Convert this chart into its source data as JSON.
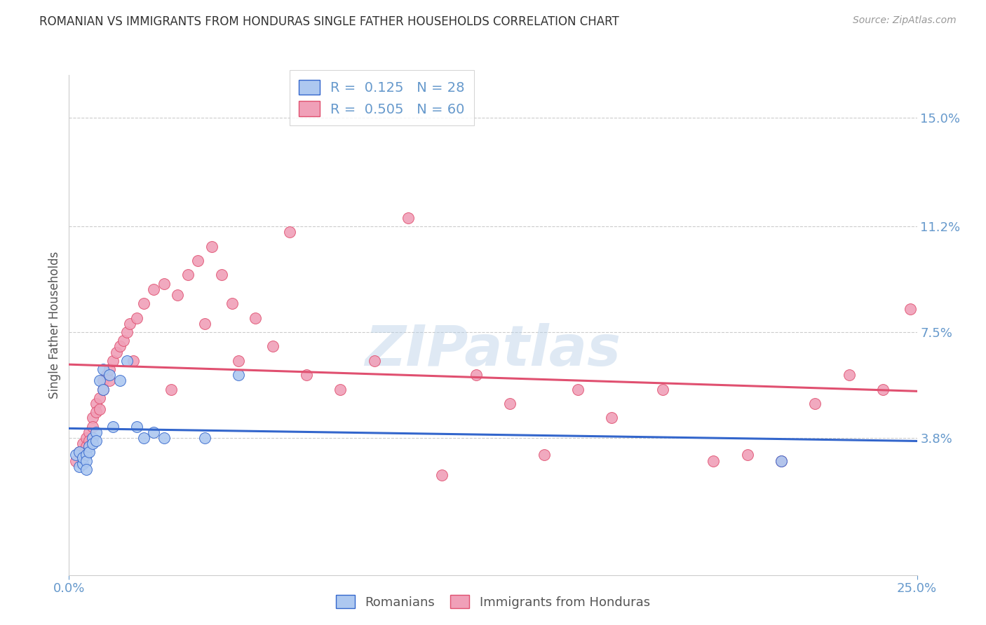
{
  "title": "ROMANIAN VS IMMIGRANTS FROM HONDURAS SINGLE FATHER HOUSEHOLDS CORRELATION CHART",
  "source": "Source: ZipAtlas.com",
  "ylabel": "Single Father Households",
  "xlabel_ticks": [
    "0.0%",
    "25.0%"
  ],
  "ytick_labels": [
    "15.0%",
    "11.2%",
    "7.5%",
    "3.8%"
  ],
  "ytick_values": [
    0.15,
    0.112,
    0.075,
    0.038
  ],
  "xlim": [
    0.0,
    0.25
  ],
  "ylim": [
    -0.01,
    0.165
  ],
  "watermark": "ZIPatlas",
  "legend_romanian_R": "0.125",
  "legend_romanian_N": "28",
  "legend_honduras_R": "0.505",
  "legend_honduras_N": "60",
  "color_romanian": "#adc8f0",
  "color_honduras": "#f0a0b8",
  "color_line_romanian": "#3366cc",
  "color_line_honduras": "#e05070",
  "color_axis_ticks": "#6699cc",
  "color_grid": "#cccccc",
  "romanians_x": [
    0.002,
    0.003,
    0.003,
    0.004,
    0.004,
    0.005,
    0.005,
    0.005,
    0.006,
    0.006,
    0.007,
    0.007,
    0.008,
    0.008,
    0.009,
    0.01,
    0.01,
    0.012,
    0.013,
    0.015,
    0.017,
    0.02,
    0.022,
    0.025,
    0.028,
    0.04,
    0.05,
    0.21
  ],
  "romanians_y": [
    0.032,
    0.028,
    0.033,
    0.029,
    0.031,
    0.032,
    0.03,
    0.027,
    0.035,
    0.033,
    0.038,
    0.036,
    0.04,
    0.037,
    0.058,
    0.062,
    0.055,
    0.06,
    0.042,
    0.058,
    0.065,
    0.042,
    0.038,
    0.04,
    0.038,
    0.038,
    0.06,
    0.03
  ],
  "honduras_x": [
    0.002,
    0.003,
    0.004,
    0.004,
    0.005,
    0.005,
    0.006,
    0.006,
    0.007,
    0.007,
    0.008,
    0.008,
    0.009,
    0.009,
    0.01,
    0.01,
    0.011,
    0.012,
    0.012,
    0.013,
    0.014,
    0.015,
    0.016,
    0.017,
    0.018,
    0.019,
    0.02,
    0.022,
    0.025,
    0.028,
    0.03,
    0.032,
    0.035,
    0.038,
    0.04,
    0.042,
    0.045,
    0.048,
    0.05,
    0.055,
    0.06,
    0.065,
    0.07,
    0.08,
    0.09,
    0.1,
    0.11,
    0.12,
    0.13,
    0.14,
    0.15,
    0.16,
    0.175,
    0.19,
    0.2,
    0.21,
    0.22,
    0.23,
    0.24,
    0.248
  ],
  "honduras_y": [
    0.03,
    0.033,
    0.036,
    0.032,
    0.038,
    0.035,
    0.04,
    0.037,
    0.045,
    0.042,
    0.05,
    0.047,
    0.052,
    0.048,
    0.058,
    0.055,
    0.06,
    0.062,
    0.058,
    0.065,
    0.068,
    0.07,
    0.072,
    0.075,
    0.078,
    0.065,
    0.08,
    0.085,
    0.09,
    0.092,
    0.055,
    0.088,
    0.095,
    0.1,
    0.078,
    0.105,
    0.095,
    0.085,
    0.065,
    0.08,
    0.07,
    0.11,
    0.06,
    0.055,
    0.065,
    0.115,
    0.025,
    0.06,
    0.05,
    0.032,
    0.055,
    0.045,
    0.055,
    0.03,
    0.032,
    0.03,
    0.05,
    0.06,
    0.055,
    0.083
  ]
}
